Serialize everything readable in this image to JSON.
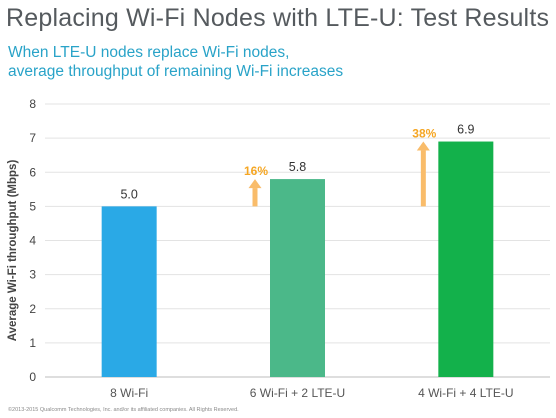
{
  "title": "Replacing Wi-Fi Nodes with LTE-U: Test Results",
  "subtitle": {
    "line1": "When LTE-U nodes replace Wi-Fi nodes,",
    "line2": "average throughput of remaining Wi-Fi increases"
  },
  "footer": "©2013-2015 Qualcomm Technologies, Inc. and/or its affiliated companies. All Rights Reserved.",
  "chart_data": {
    "type": "bar",
    "title": "Replacing Wi-Fi Nodes with LTE-U: Test Results",
    "subtitle": "When LTE-U nodes replace Wi-Fi nodes, average throughput of remaining Wi-Fi increases",
    "xlabel": "",
    "ylabel": "Average Wi-Fi throughput (Mbps)",
    "ylim": [
      0,
      8
    ],
    "yticks": [
      0,
      1,
      2,
      3,
      4,
      5,
      6,
      7,
      8
    ],
    "grid": true,
    "categories": [
      "8 Wi-Fi",
      "6 Wi-Fi + 2 LTE-U",
      "4 Wi-Fi + 4 LTE-U"
    ],
    "values": [
      5.0,
      5.8,
      6.9
    ],
    "value_labels": [
      "5.0",
      "5.8",
      "6.9"
    ],
    "bar_colors": [
      "#2aa9e6",
      "#4bb889",
      "#13b14b"
    ],
    "annotations": [
      {
        "category": "6 Wi-Fi + 2 LTE-U",
        "label": "16%",
        "arrow_from": 5.0,
        "arrow_to": 5.8
      },
      {
        "category": "4 Wi-Fi + 4 LTE-U",
        "label": "38%",
        "arrow_from": 5.0,
        "arrow_to": 6.9
      }
    ],
    "colors": {
      "grid": "#e3e3e3",
      "axis": "#bcbcbc",
      "annotation": "#f5a623",
      "annotation_arrow": "#f9bc6a"
    }
  }
}
